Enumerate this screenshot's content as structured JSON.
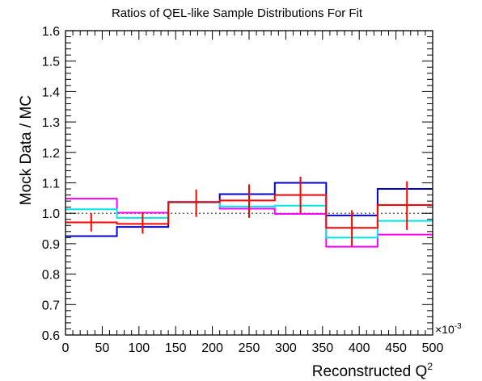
{
  "chart_data": {
    "type": "step-histogram-ratio",
    "title": "Ratios of QEL-like Sample Distributions For Fit",
    "xlabel": "Reconstructed Q",
    "xlabel_sup": "2",
    "ylabel": "Mock Data / MC",
    "x_multiplier_label": "×10",
    "x_multiplier_exp": "-3",
    "xlim": [
      0,
      0.5
    ],
    "ylim": [
      0.6,
      1.6
    ],
    "x_ticks": [
      0,
      0.05,
      0.1,
      0.15,
      0.2,
      0.25,
      0.3,
      0.35,
      0.4,
      0.45,
      0.5
    ],
    "x_tick_labels": [
      "0",
      "50",
      "100",
      "150",
      "200",
      "250",
      "300",
      "350",
      "400",
      "450",
      "500"
    ],
    "y_ticks": [
      0.6,
      0.7,
      0.8,
      0.9,
      1.0,
      1.1,
      1.2,
      1.3,
      1.4,
      1.5,
      1.6
    ],
    "y_tick_labels": [
      "0.6",
      "0.7",
      "0.8",
      "0.9",
      "1.0",
      "1.1",
      "1.2",
      "1.3",
      "1.4",
      "1.5",
      "1.6"
    ],
    "bin_edges": [
      0,
      0.07,
      0.14,
      0.21,
      0.285,
      0.355,
      0.425,
      0.5
    ],
    "reference_line": {
      "y": 1.0,
      "style": "dotted",
      "color": "#666666"
    },
    "series": [
      {
        "color": "#0000cc",
        "values": [
          0.925,
          0.955,
          1.035,
          1.063,
          1.1,
          0.993,
          1.08
        ]
      },
      {
        "color": "#ff00ff",
        "values": [
          1.048,
          1.002,
          1.037,
          1.015,
          0.998,
          0.89,
          0.93
        ]
      },
      {
        "color": "#00e6e6",
        "values": [
          1.013,
          0.985,
          1.035,
          1.022,
          1.025,
          0.92,
          0.975
        ]
      },
      {
        "color": "#ff0000",
        "values": [
          0.97,
          0.965,
          1.037,
          1.042,
          1.06,
          0.952,
          1.027
        ],
        "points": [
          {
            "x": 0.035,
            "y": 0.97,
            "err": 0.03
          },
          {
            "x": 0.105,
            "y": 0.968,
            "err": 0.035
          },
          {
            "x": 0.178,
            "y": 1.033,
            "err": 0.045
          },
          {
            "x": 0.25,
            "y": 1.04,
            "err": 0.055
          },
          {
            "x": 0.32,
            "y": 1.06,
            "err": 0.06
          },
          {
            "x": 0.39,
            "y": 0.95,
            "err": 0.06
          },
          {
            "x": 0.465,
            "y": 1.025,
            "err": 0.08
          }
        ]
      }
    ]
  }
}
